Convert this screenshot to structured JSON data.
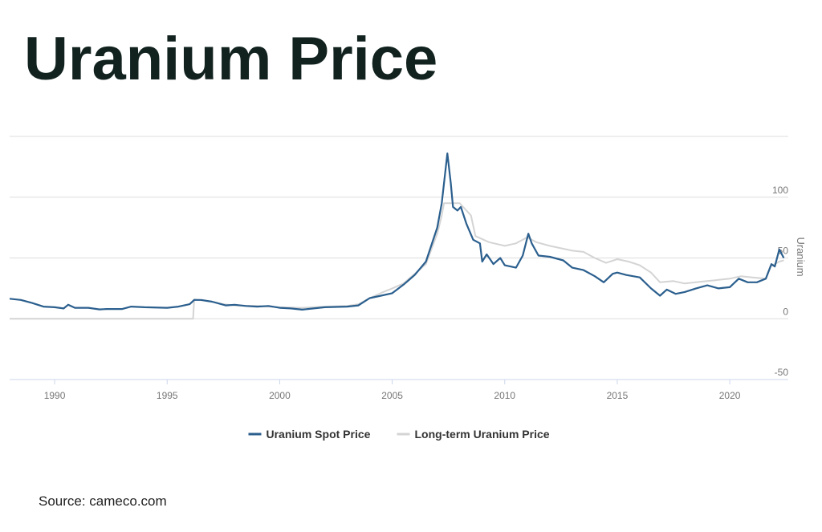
{
  "chart_data": {
    "type": "line",
    "title": "Uranium Price",
    "y_label": "Uranium",
    "source": "Source: cameco.com",
    "xlim": [
      1988,
      2022.6
    ],
    "xticks": [
      1990,
      1995,
      2000,
      2005,
      2010,
      2015,
      2020
    ],
    "ylim": [
      -50,
      150
    ],
    "yticks": [
      -50,
      0,
      50,
      100
    ],
    "grid": true,
    "legend": "bottom",
    "series": [
      {
        "name": "Uranium Spot Price",
        "color": "#2b5f8e",
        "x": [
          1988,
          1988.5,
          1989,
          1989.5,
          1990,
          1990.4,
          1990.6,
          1990.9,
          1991.5,
          1992,
          1992.3,
          1993,
          1993.4,
          1994,
          1995,
          1995.5,
          1996,
          1996.2,
          1996.5,
          1997,
          1997.6,
          1998,
          1998.5,
          1999,
          1999.5,
          2000,
          2000.5,
          2001,
          2001.5,
          2002,
          2003,
          2003.5,
          2004,
          2004.5,
          2005,
          2005.5,
          2006,
          2006.5,
          2007,
          2007.2,
          2007.45,
          2007.6,
          2007.7,
          2007.9,
          2008.05,
          2008.3,
          2008.6,
          2008.9,
          2009.0,
          2009.2,
          2009.5,
          2009.8,
          2010,
          2010.5,
          2010.8,
          2011.05,
          2011.2,
          2011.5,
          2012,
          2012.6,
          2013,
          2013.5,
          2014,
          2014.4,
          2014.8,
          2015,
          2015.4,
          2016,
          2016.5,
          2016.9,
          2017.2,
          2017.6,
          2018,
          2018.5,
          2019,
          2019.5,
          2020,
          2020.4,
          2020.8,
          2021.2,
          2021.6,
          2021.85,
          2022,
          2022.2,
          2022.4
        ],
        "values": [
          16.5,
          15.5,
          13,
          10,
          9.5,
          8.5,
          11.5,
          9,
          9,
          7.7,
          8,
          8,
          10,
          9.5,
          9,
          10,
          12,
          15.5,
          15.5,
          14,
          11,
          11.5,
          10.5,
          10,
          10.5,
          9,
          8.5,
          7.5,
          8.5,
          9.5,
          10,
          11,
          17,
          19,
          21,
          28,
          36,
          47,
          75,
          95,
          136,
          112,
          92,
          89,
          92,
          78,
          65,
          62,
          47,
          53,
          45,
          50,
          44,
          42,
          52,
          70,
          62,
          52,
          51,
          48,
          42,
          40,
          35,
          30,
          37,
          38,
          36,
          34,
          25,
          19,
          24,
          20.5,
          22,
          25,
          27.5,
          25,
          26,
          33,
          30,
          30,
          33,
          45,
          43,
          57,
          50
        ]
      },
      {
        "name": "Long-term Uranium Price",
        "color": "#d4d4d4",
        "x": [
          1988,
          1996.15,
          1996.2,
          1997,
          1997.5,
          1998,
          1999,
          2000,
          2001,
          2002,
          2003,
          2003.5,
          2004,
          2004.6,
          2005,
          2005.5,
          2006,
          2006.5,
          2007,
          2007.2,
          2007.3,
          2008,
          2008.5,
          2008.7,
          2009.3,
          2010,
          2010.5,
          2011,
          2011.4,
          2012,
          2013,
          2013.5,
          2014,
          2014.5,
          2015,
          2015.5,
          2016,
          2016.5,
          2016.9,
          2017.5,
          2018,
          2018.5,
          2019,
          2019.5,
          2020,
          2020.5,
          2021,
          2021.6,
          2021.8,
          2022.2,
          2022.4
        ],
        "values": [
          0,
          0,
          16,
          14,
          12,
          11,
          10.5,
          9.5,
          9,
          10,
          10.5,
          12,
          17,
          22,
          25,
          29,
          37,
          45,
          70,
          85,
          95,
          95,
          85,
          68,
          63,
          60,
          62,
          67,
          63,
          60,
          56,
          55,
          50,
          46,
          49,
          47,
          44,
          38,
          30,
          31,
          29,
          30,
          31,
          32,
          33,
          35,
          34,
          33,
          43,
          47,
          48
        ]
      }
    ]
  }
}
